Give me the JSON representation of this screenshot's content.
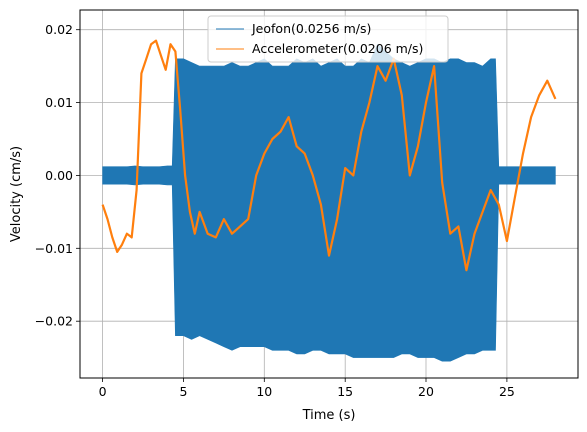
{
  "chart_data": {
    "type": "line",
    "xlabel": "Time (s)",
    "ylabel": "Velocity (cm/s)",
    "xlim": [
      -1.4,
      29.4
    ],
    "ylim": [
      -0.0278,
      0.0227
    ],
    "x_ticks": [
      0,
      5,
      10,
      15,
      20,
      25
    ],
    "x_tick_labels": [
      "0",
      "5",
      "10",
      "15",
      "20",
      "25"
    ],
    "y_ticks": [
      -0.02,
      -0.01,
      0.0,
      0.01,
      0.02
    ],
    "y_tick_labels": [
      "−0.02",
      "−0.01",
      "0.00",
      "0.01",
      "0.02"
    ],
    "grid": true,
    "legend_position": "top-center",
    "series": [
      {
        "name": "Jeofon(0.0256 m/s)",
        "color": "#1f77b4",
        "representation": "band",
        "x": [
          0,
          0.5,
          1,
          1.5,
          2,
          2.5,
          3,
          3.5,
          4,
          4.3,
          4.5,
          5,
          5.5,
          6,
          6.5,
          7,
          7.5,
          8,
          8.5,
          9,
          9.5,
          10,
          10.5,
          11,
          11.5,
          12,
          12.5,
          13,
          13.5,
          14,
          14.5,
          15,
          15.5,
          16,
          16.5,
          17,
          17.5,
          18,
          18.5,
          19,
          19.5,
          20,
          20.5,
          21,
          21.5,
          22,
          22.5,
          23,
          23.5,
          24,
          24.3,
          24.5,
          25,
          25.5,
          26,
          26.5,
          27,
          27.5,
          28
        ],
        "upper": [
          0.0012,
          0.0012,
          0.0012,
          0.0012,
          0.0013,
          0.0012,
          0.0012,
          0.0012,
          0.0013,
          0.0013,
          0.016,
          0.016,
          0.0155,
          0.015,
          0.015,
          0.015,
          0.015,
          0.0155,
          0.015,
          0.015,
          0.0155,
          0.016,
          0.015,
          0.015,
          0.015,
          0.016,
          0.0155,
          0.016,
          0.015,
          0.0155,
          0.016,
          0.015,
          0.015,
          0.016,
          0.0155,
          0.018,
          0.017,
          0.016,
          0.0155,
          0.015,
          0.0155,
          0.016,
          0.016,
          0.0155,
          0.016,
          0.016,
          0.0155,
          0.0155,
          0.015,
          0.016,
          0.016,
          0.0012,
          0.0012,
          0.0012,
          0.0012,
          0.0012,
          0.0012,
          0.0012,
          0.0012
        ],
        "lower": [
          -0.0012,
          -0.0012,
          -0.0012,
          -0.0012,
          -0.0013,
          -0.0012,
          -0.0012,
          -0.0012,
          -0.0013,
          -0.0013,
          -0.022,
          -0.022,
          -0.0225,
          -0.022,
          -0.0225,
          -0.023,
          -0.0235,
          -0.024,
          -0.0235,
          -0.0235,
          -0.0235,
          -0.0235,
          -0.024,
          -0.024,
          -0.024,
          -0.0245,
          -0.0245,
          -0.024,
          -0.024,
          -0.0245,
          -0.0245,
          -0.0245,
          -0.025,
          -0.025,
          -0.025,
          -0.025,
          -0.025,
          -0.025,
          -0.0245,
          -0.0245,
          -0.025,
          -0.025,
          -0.025,
          -0.0255,
          -0.0255,
          -0.025,
          -0.0245,
          -0.0245,
          -0.024,
          -0.024,
          -0.024,
          -0.0012,
          -0.0012,
          -0.0012,
          -0.0012,
          -0.0012,
          -0.0012,
          -0.0012,
          -0.0012
        ]
      },
      {
        "name": "Accelerometer(0.0206 m/s)",
        "color": "#ff7f0e",
        "representation": "line",
        "x": [
          0,
          0.3,
          0.6,
          0.9,
          1.2,
          1.5,
          1.8,
          2.1,
          2.4,
          2.7,
          3.0,
          3.3,
          3.6,
          3.9,
          4.2,
          4.5,
          4.8,
          5.1,
          5.4,
          5.7,
          6.0,
          6.5,
          7.0,
          7.5,
          8.0,
          8.5,
          9.0,
          9.5,
          10.0,
          10.5,
          11.0,
          11.5,
          12.0,
          12.5,
          13.0,
          13.5,
          14.0,
          14.5,
          15.0,
          15.5,
          16.0,
          16.5,
          17.0,
          17.5,
          18.0,
          18.5,
          19.0,
          19.5,
          20.0,
          20.5,
          21.0,
          21.5,
          22.0,
          22.5,
          23.0,
          23.5,
          24.0,
          24.5,
          25.0,
          25.5,
          26.0,
          26.5,
          27.0,
          27.5,
          28.0
        ],
        "y": [
          -0.004,
          -0.006,
          -0.0085,
          -0.0105,
          -0.0095,
          -0.008,
          -0.0085,
          -0.002,
          0.014,
          0.016,
          0.018,
          0.0185,
          0.0165,
          0.0145,
          0.018,
          0.017,
          0.009,
          0.0,
          -0.005,
          -0.008,
          -0.005,
          -0.008,
          -0.0085,
          -0.006,
          -0.008,
          -0.007,
          -0.006,
          0.0,
          0.003,
          0.005,
          0.006,
          0.008,
          0.004,
          0.003,
          0.0,
          -0.004,
          -0.011,
          -0.006,
          0.001,
          0.0,
          0.006,
          0.01,
          0.015,
          0.013,
          0.016,
          0.011,
          0.0,
          0.004,
          0.01,
          0.015,
          -0.001,
          -0.008,
          -0.007,
          -0.013,
          -0.008,
          -0.005,
          -0.002,
          -0.004,
          -0.009,
          -0.003,
          0.003,
          0.008,
          0.011,
          0.013,
          0.0105
        ]
      }
    ]
  }
}
